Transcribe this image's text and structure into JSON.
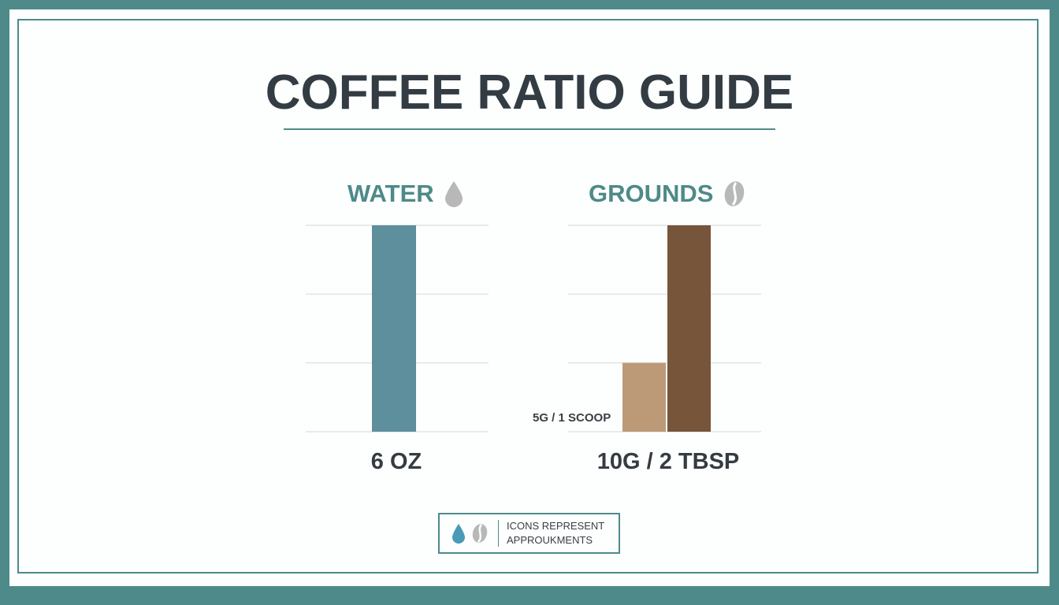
{
  "title": "COFFEE RATIO GUIDE",
  "colors": {
    "frame": "#4e8a8a",
    "water_bar": "#5e8f9c",
    "grounds_light": "#bc9a78",
    "grounds_dark": "#76553b",
    "heading": "#4e8a88",
    "icon_grey": "#b8b8b8",
    "drop_blue": "#4a9ab5"
  },
  "chart_data": [
    {
      "type": "bar",
      "title": "WATER",
      "icon": "water-drop-icon",
      "ylim": [
        0,
        3
      ],
      "grid": true,
      "series": [
        {
          "values": [
            3
          ]
        }
      ],
      "value_label": "6 OZ"
    },
    {
      "type": "bar",
      "title": "GROUNDS",
      "icon": "coffee-bean-icon",
      "ylim": [
        0,
        3
      ],
      "grid": true,
      "series": [
        {
          "values": [
            1
          ]
        },
        {
          "values": [
            3
          ]
        }
      ],
      "bar_labels": [
        "5G / 1 SCOOP",
        ""
      ],
      "value_label": "10G / 2 TBSP"
    }
  ],
  "legend": {
    "line1": "ICONS REPRESENT",
    "line2": "APPROUKMENTS"
  }
}
